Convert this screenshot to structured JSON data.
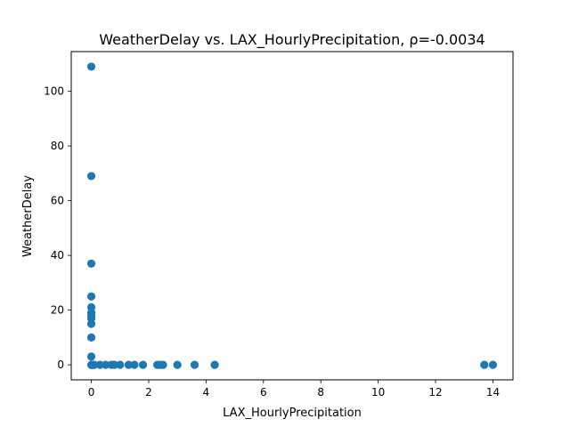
{
  "chart_data": {
    "type": "scatter",
    "title": "WeatherDelay vs. LAX_HourlyPrecipitation, ρ=-0.0034",
    "xlabel": "LAX_HourlyPrecipitation",
    "ylabel": "WeatherDelay",
    "xlim": [
      -0.7,
      14.7
    ],
    "ylim": [
      -5.5,
      114.5
    ],
    "xticks": [
      0,
      2,
      4,
      6,
      8,
      10,
      12,
      14
    ],
    "yticks": [
      0,
      20,
      40,
      60,
      80,
      100
    ],
    "grid": false,
    "marker_color": "#1f77b4",
    "points": [
      {
        "x": 0,
        "y": 109
      },
      {
        "x": 0,
        "y": 69
      },
      {
        "x": 0,
        "y": 37
      },
      {
        "x": 0,
        "y": 25
      },
      {
        "x": 0,
        "y": 21
      },
      {
        "x": 0,
        "y": 19
      },
      {
        "x": 0,
        "y": 18
      },
      {
        "x": 0,
        "y": 17
      },
      {
        "x": 0,
        "y": 15
      },
      {
        "x": 0,
        "y": 10
      },
      {
        "x": 0,
        "y": 3
      },
      {
        "x": 0,
        "y": 0
      },
      {
        "x": 0.01,
        "y": 0
      },
      {
        "x": 0.02,
        "y": 0
      },
      {
        "x": 0.03,
        "y": 0
      },
      {
        "x": 0.05,
        "y": 0
      },
      {
        "x": 0.08,
        "y": 0
      },
      {
        "x": 0.1,
        "y": 0
      },
      {
        "x": 0.3,
        "y": 0
      },
      {
        "x": 0.5,
        "y": 0
      },
      {
        "x": 0.7,
        "y": 0
      },
      {
        "x": 0.8,
        "y": 0
      },
      {
        "x": 1.0,
        "y": 0
      },
      {
        "x": 1.3,
        "y": 0
      },
      {
        "x": 1.5,
        "y": 0
      },
      {
        "x": 1.8,
        "y": 0
      },
      {
        "x": 2.3,
        "y": 0
      },
      {
        "x": 2.4,
        "y": 0
      },
      {
        "x": 2.5,
        "y": 0
      },
      {
        "x": 3.0,
        "y": 0
      },
      {
        "x": 3.6,
        "y": 0
      },
      {
        "x": 4.3,
        "y": 0
      },
      {
        "x": 13.7,
        "y": 0
      },
      {
        "x": 14.0,
        "y": 0
      }
    ]
  }
}
